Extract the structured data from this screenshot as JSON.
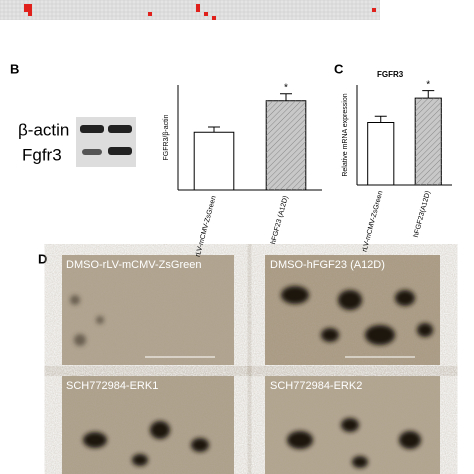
{
  "figure": {
    "panel_b": "B",
    "panel_c": "C",
    "panel_d": "D",
    "blot_labels": [
      "β-actin",
      "Fgfr3"
    ],
    "image_labels": [
      "DMSO-rLV-mCMV-ZsGreen",
      "DMSO-hFGF23 (A12D)",
      "SCH772984-ERK1",
      "SCH772984-ERK2"
    ]
  },
  "chart_data": [
    {
      "type": "bar",
      "ylabel": "FGFR3/β-actin",
      "categories": [
        "rLV-mCMV-ZsGreen",
        "hFGF23 (A12D)"
      ],
      "values": [
        0.33,
        0.51
      ],
      "errors": [
        0.03,
        0.04
      ],
      "colors": [
        "#ffffff",
        "#c8c8c8"
      ],
      "ylim": [
        0,
        0.6
      ],
      "annotation": "*"
    },
    {
      "type": "bar",
      "title": "FGFR3",
      "ylabel": "Relative mRNA expression",
      "categories": [
        "rLV-mCMV-ZsGreen",
        "hFGF23(A12D)"
      ],
      "values": [
        1.0,
        1.39
      ],
      "errors": [
        0.1,
        0.12
      ],
      "colors": [
        "#ffffff",
        "#c8c8c8"
      ],
      "ylim": [
        0,
        1.6
      ],
      "annotation": "*"
    }
  ]
}
